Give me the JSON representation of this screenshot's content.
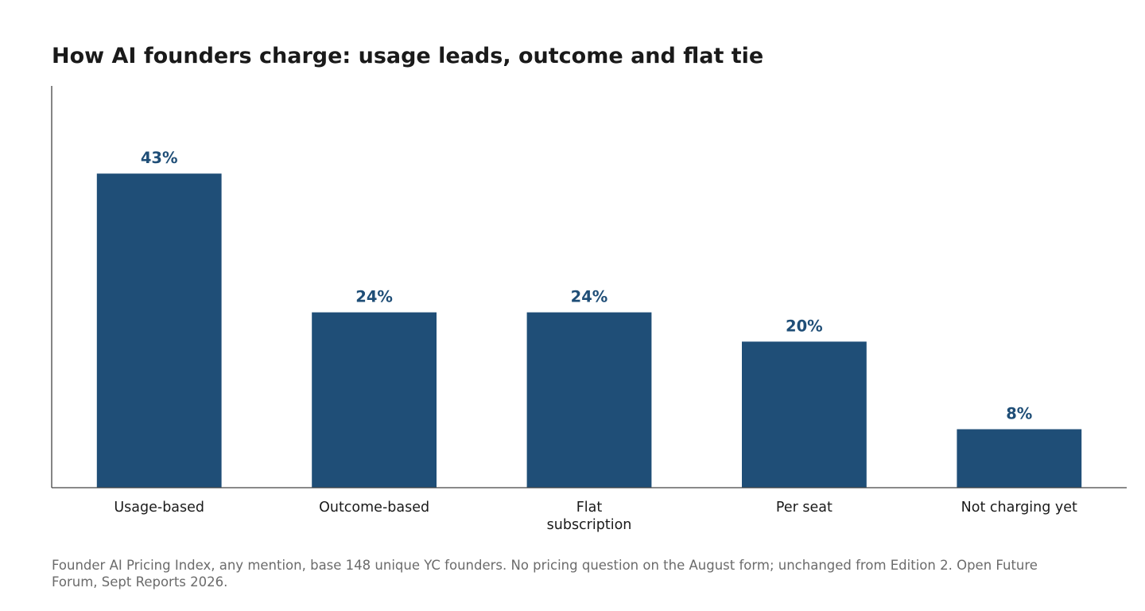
{
  "chart_data": {
    "type": "bar",
    "title": "How AI founders charge: usage leads, outcome and flat tie",
    "xlabel": "",
    "ylabel": "",
    "categories": [
      "Usage-based",
      "Outcome-based",
      "Flat subscription",
      "Per seat",
      "Not charging yet"
    ],
    "category_lines": [
      [
        "Usage-based"
      ],
      [
        "Outcome-based"
      ],
      [
        "Flat",
        "subscription"
      ],
      [
        "Per seat"
      ],
      [
        "Not charging yet"
      ]
    ],
    "values": [
      43,
      24,
      24,
      20,
      8
    ],
    "value_labels": [
      "43%",
      "24%",
      "24%",
      "20%",
      "8%"
    ],
    "unit": "%",
    "ylim": [
      0,
      55
    ],
    "grid": false,
    "legend": "none",
    "bar_color": "#1f4e77",
    "label_color": "#1f4e77"
  },
  "source_note": "Founder AI Pricing Index, any mention, base 148 unique YC founders. No pricing question on the August form; unchanged from Edition 2. Open Future Forum, Sept Reports 2026."
}
